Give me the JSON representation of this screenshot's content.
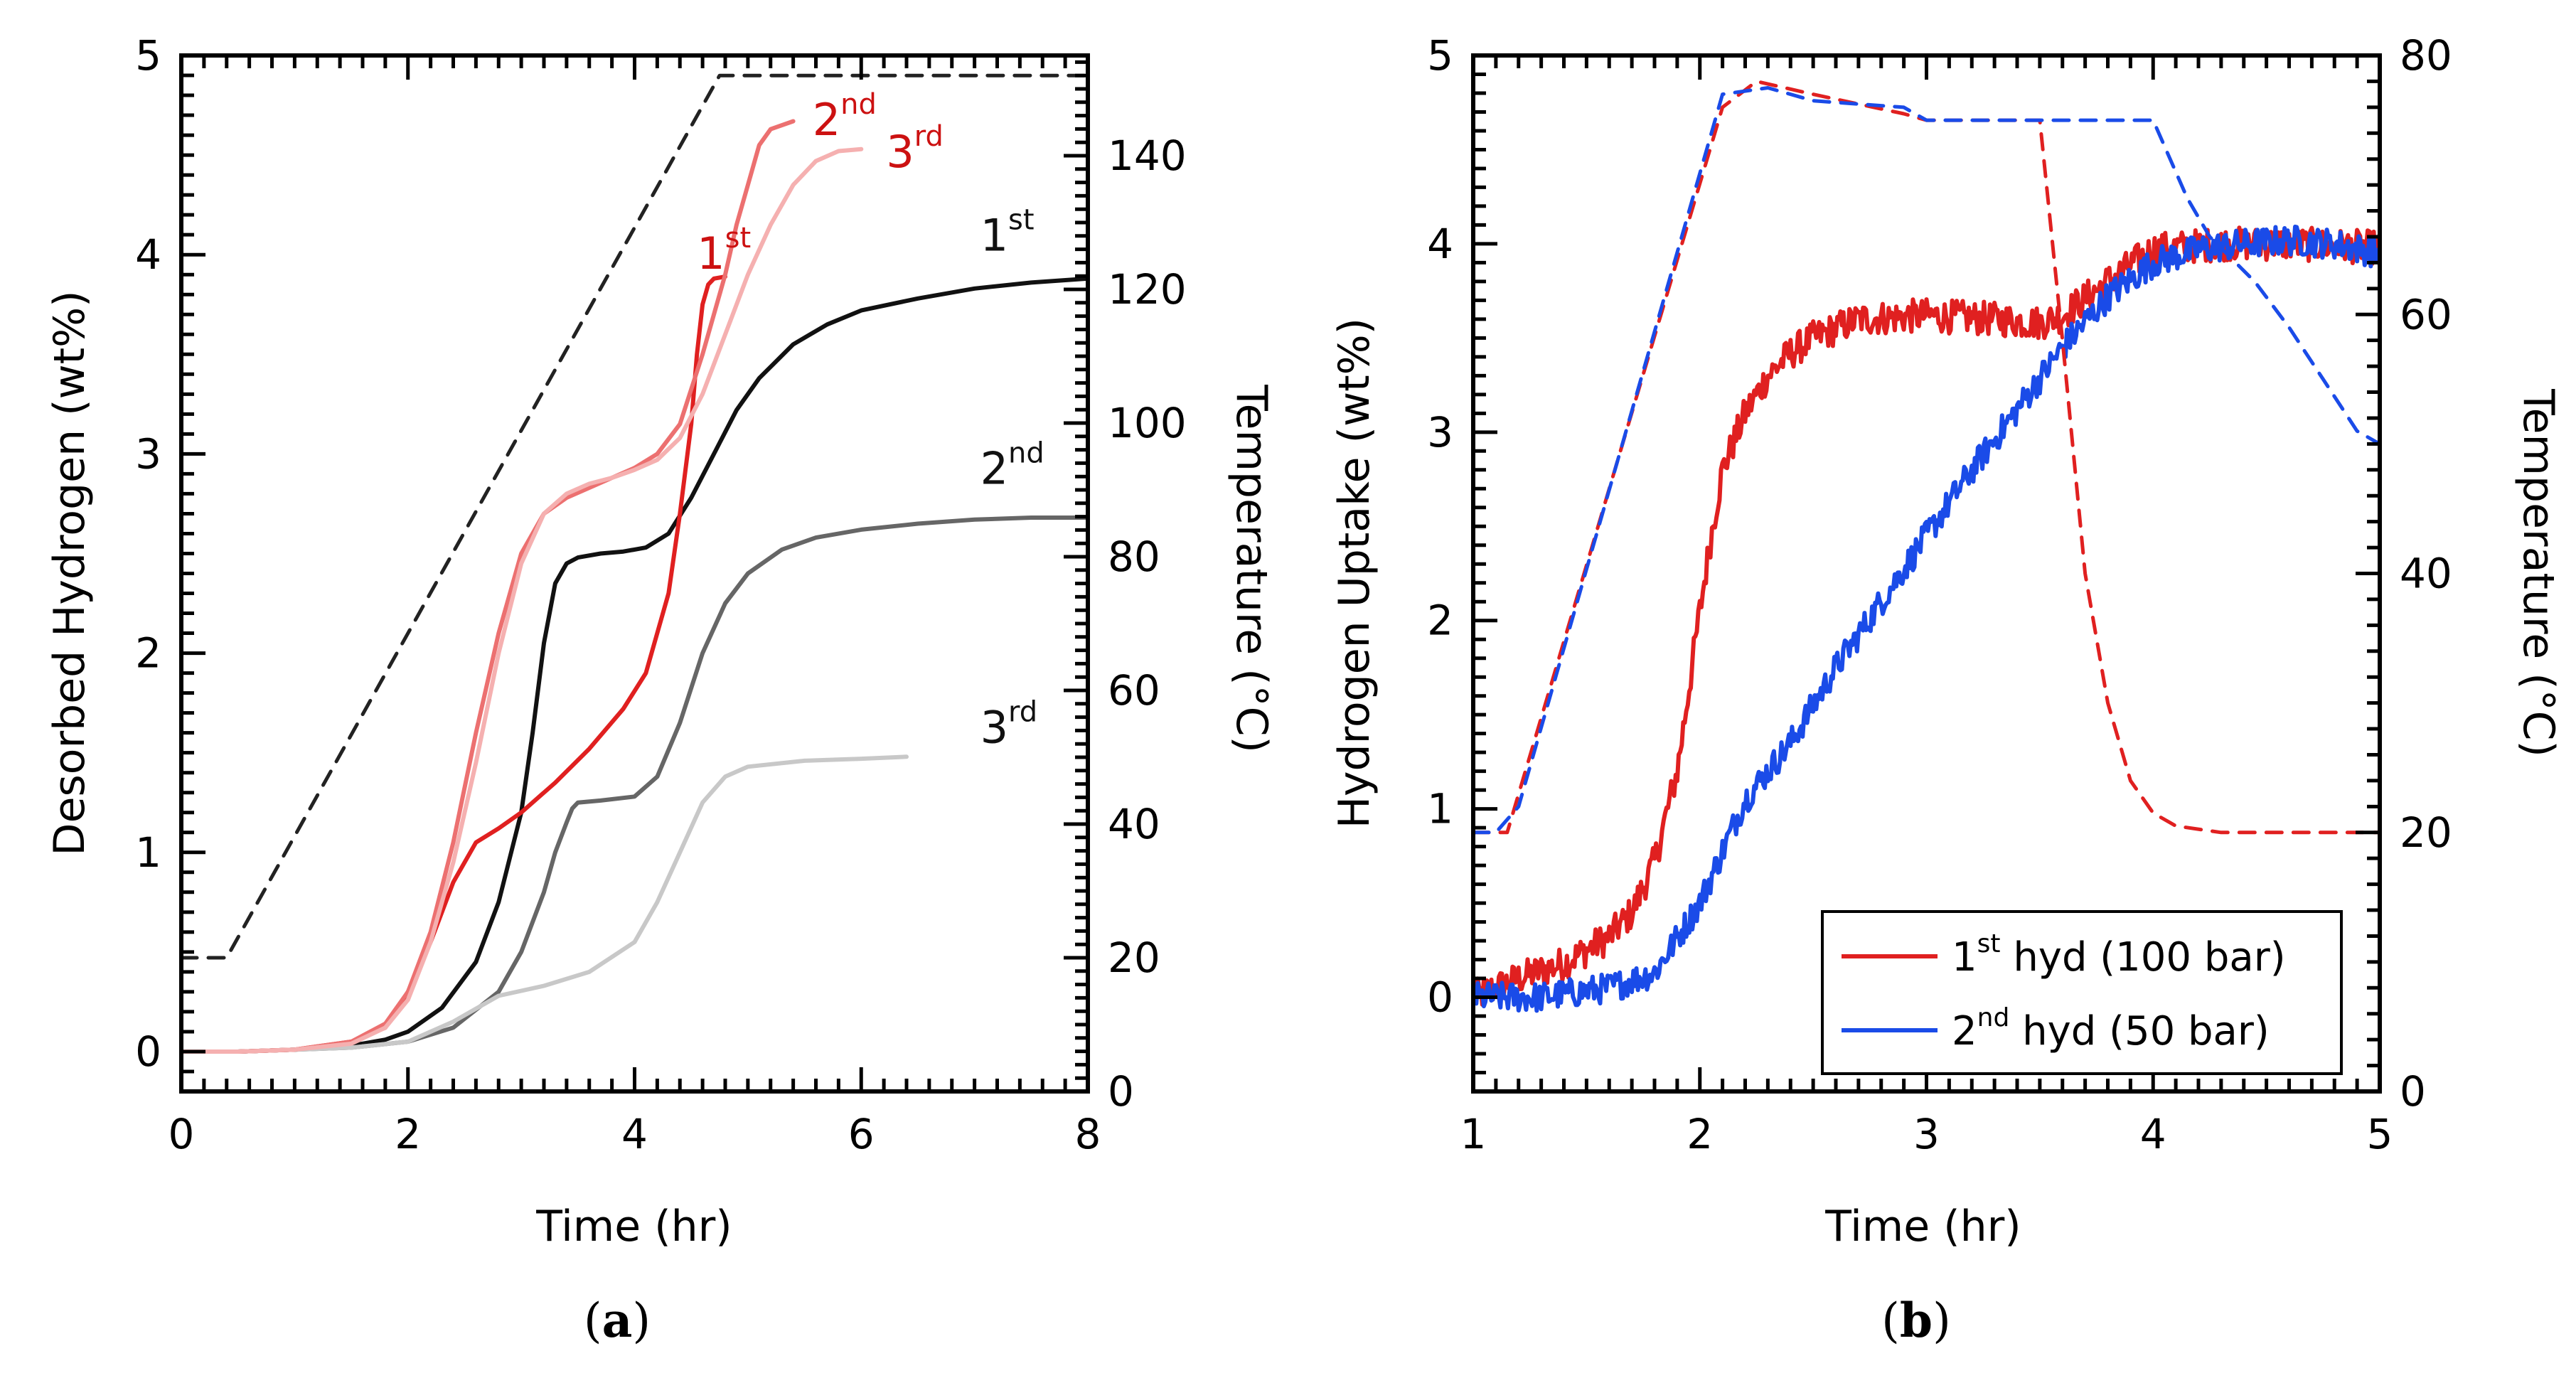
{
  "chart_data": [
    {
      "panel": "a",
      "panel_label": "(a)",
      "panel_letter": "a",
      "type": "line",
      "xlabel": "Time  (hr)",
      "ylabel": "Desorbed Hydrogen   (wt%)",
      "y2label": "Temperature   (°C)",
      "xlim": [
        0,
        8
      ],
      "ylim": [
        -0.2,
        5
      ],
      "y2lim": [
        0,
        155
      ],
      "xticks": [
        "0",
        "2",
        "4",
        "6",
        "8"
      ],
      "yticks": [
        "0",
        "1",
        "2",
        "3",
        "4",
        "5"
      ],
      "y2ticks": [
        "0",
        "20",
        "40",
        "60",
        "80",
        "100",
        "120",
        "140"
      ],
      "series": [
        {
          "name": "1st (black)",
          "color": "#111111",
          "axis": "left",
          "x": [
            0,
            0.5,
            1.0,
            1.5,
            1.8,
            2.0,
            2.3,
            2.6,
            2.8,
            3.0,
            3.1,
            3.2,
            3.3,
            3.4,
            3.5,
            3.7,
            3.9,
            4.1,
            4.3,
            4.5,
            4.7,
            4.9,
            5.1,
            5.4,
            5.7,
            6.0,
            6.5,
            7.0,
            7.5,
            8.0
          ],
          "y": [
            0,
            0,
            0.01,
            0.03,
            0.06,
            0.1,
            0.22,
            0.45,
            0.75,
            1.2,
            1.6,
            2.05,
            2.35,
            2.45,
            2.48,
            2.5,
            2.51,
            2.53,
            2.6,
            2.78,
            3.0,
            3.22,
            3.38,
            3.55,
            3.65,
            3.72,
            3.78,
            3.83,
            3.86,
            3.88
          ]
        },
        {
          "name": "2nd (grey)",
          "color": "#666666",
          "axis": "left",
          "x": [
            0,
            0.5,
            1.0,
            1.5,
            2.0,
            2.4,
            2.8,
            3.0,
            3.2,
            3.3,
            3.4,
            3.45,
            3.5,
            3.7,
            4.0,
            4.2,
            4.4,
            4.6,
            4.8,
            5.0,
            5.3,
            5.6,
            6.0,
            6.5,
            7.0,
            7.5,
            8.0
          ],
          "y": [
            0,
            0,
            0.01,
            0.02,
            0.05,
            0.12,
            0.3,
            0.5,
            0.8,
            1.0,
            1.15,
            1.22,
            1.25,
            1.26,
            1.28,
            1.38,
            1.65,
            2.0,
            2.25,
            2.4,
            2.52,
            2.58,
            2.62,
            2.65,
            2.67,
            2.68,
            2.68
          ]
        },
        {
          "name": "3rd (light grey)",
          "color": "#c8c8c8",
          "axis": "left",
          "x": [
            0,
            0.5,
            1.0,
            1.5,
            2.0,
            2.4,
            2.8,
            3.2,
            3.6,
            4.0,
            4.2,
            4.4,
            4.6,
            4.8,
            5.0,
            5.5,
            6.0,
            6.4
          ],
          "y": [
            0,
            0,
            0.01,
            0.02,
            0.05,
            0.15,
            0.28,
            0.33,
            0.4,
            0.55,
            0.75,
            1.0,
            1.25,
            1.38,
            1.43,
            1.46,
            1.47,
            1.48
          ]
        },
        {
          "name": "1st (red)",
          "color": "#e02020",
          "axis": "left",
          "x": [
            0,
            0.5,
            1.0,
            1.5,
            1.8,
            2.0,
            2.2,
            2.4,
            2.6,
            2.8,
            3.0,
            3.3,
            3.6,
            3.9,
            4.1,
            4.3,
            4.4,
            4.5,
            4.55,
            4.6,
            4.65,
            4.7,
            4.8
          ],
          "y": [
            0,
            0,
            0.01,
            0.05,
            0.12,
            0.3,
            0.55,
            0.85,
            1.05,
            1.12,
            1.2,
            1.35,
            1.52,
            1.72,
            1.9,
            2.3,
            2.7,
            3.15,
            3.5,
            3.75,
            3.85,
            3.88,
            3.89
          ]
        },
        {
          "name": "2nd (salmon)",
          "color": "#ec7070",
          "axis": "left",
          "x": [
            0,
            0.5,
            1.0,
            1.5,
            1.8,
            2.0,
            2.2,
            2.4,
            2.6,
            2.8,
            3.0,
            3.2,
            3.4,
            3.6,
            3.8,
            4.0,
            4.2,
            4.4,
            4.6,
            4.8,
            4.9,
            5.0,
            5.1,
            5.2,
            5.4
          ],
          "y": [
            0,
            0,
            0.01,
            0.05,
            0.14,
            0.3,
            0.6,
            1.05,
            1.6,
            2.1,
            2.5,
            2.7,
            2.78,
            2.83,
            2.88,
            2.93,
            3.0,
            3.15,
            3.5,
            3.9,
            4.15,
            4.35,
            4.55,
            4.63,
            4.67
          ]
        },
        {
          "name": "3rd (pink)",
          "color": "#f5b0b0",
          "axis": "left",
          "x": [
            0,
            0.5,
            1.0,
            1.5,
            1.8,
            2.0,
            2.2,
            2.4,
            2.6,
            2.8,
            3.0,
            3.2,
            3.4,
            3.6,
            3.8,
            4.0,
            4.2,
            4.4,
            4.6,
            4.8,
            5.0,
            5.2,
            5.4,
            5.6,
            5.8,
            6.0
          ],
          "y": [
            0,
            0,
            0.01,
            0.04,
            0.12,
            0.26,
            0.55,
            0.95,
            1.45,
            2.0,
            2.45,
            2.7,
            2.8,
            2.85,
            2.88,
            2.92,
            2.97,
            3.08,
            3.3,
            3.6,
            3.9,
            4.15,
            4.35,
            4.47,
            4.52,
            4.53
          ]
        },
        {
          "name": "Temperature",
          "color": "#222222",
          "axis": "right",
          "dashed": true,
          "x": [
            0,
            0.35,
            0.4,
            4.75,
            8.0
          ],
          "y": [
            20,
            20,
            20,
            152,
            152
          ]
        }
      ],
      "annotations": [
        {
          "base": "1",
          "sup": "st",
          "color": "#cc1111",
          "x": 4.55,
          "y": 3.93
        },
        {
          "base": "2",
          "sup": "nd",
          "color": "#cc1111",
          "x": 5.57,
          "y": 4.6
        },
        {
          "base": "3",
          "sup": "rd",
          "color": "#cc1111",
          "x": 6.22,
          "y": 4.44
        },
        {
          "base": "1",
          "sup": "st",
          "color": "#111111",
          "x": 7.05,
          "y": 4.02
        },
        {
          "base": "2",
          "sup": "nd",
          "color": "#111111",
          "x": 7.05,
          "y": 2.85
        },
        {
          "base": "3",
          "sup": "rd",
          "color": "#111111",
          "x": 7.05,
          "y": 1.55
        }
      ]
    },
    {
      "panel": "b",
      "panel_label": "(b)",
      "panel_letter": "b",
      "type": "line",
      "xlabel": "Time    (hr)",
      "ylabel": "Hydrogen Uptake   (wt%)",
      "y2label": "Temperature   (°C)",
      "xlim": [
        1,
        5
      ],
      "ylim": [
        -0.5,
        5
      ],
      "y2lim": [
        0,
        80
      ],
      "xticks": [
        "1",
        "2",
        "3",
        "4",
        "5"
      ],
      "yticks": [
        "0",
        "1",
        "2",
        "3",
        "4",
        "5"
      ],
      "y2ticks": [
        "0",
        "20",
        "40",
        "60",
        "80"
      ],
      "legend": {
        "position": "bottom-right",
        "entries": [
          {
            "base": "1",
            "sup": "st",
            "rest": " hyd (100 bar)",
            "color": "#e02020"
          },
          {
            "base": "2",
            "sup": "nd",
            "rest": " hyd (50 bar)",
            "color": "#1a4be8"
          }
        ]
      },
      "series": [
        {
          "name": "1st hyd (100 bar)",
          "color": "#e02020",
          "axis": "left",
          "x": [
            1.0,
            1.2,
            1.4,
            1.6,
            1.7,
            1.8,
            1.9,
            2.0,
            2.05,
            2.1,
            2.2,
            2.3,
            2.4,
            2.5,
            2.7,
            3.0,
            3.3,
            3.5,
            3.6,
            3.8,
            4.0,
            4.3,
            4.6,
            5.0
          ],
          "y": [
            0.0,
            0.1,
            0.18,
            0.32,
            0.45,
            0.72,
            1.2,
            2.05,
            2.45,
            2.8,
            3.1,
            3.3,
            3.42,
            3.5,
            3.6,
            3.62,
            3.6,
            3.58,
            3.62,
            3.8,
            3.97,
            4.0,
            4.0,
            3.98
          ],
          "noise": 0.09
        },
        {
          "name": "2nd hyd (50 bar)",
          "color": "#1a4be8",
          "axis": "left",
          "x": [
            1.0,
            1.3,
            1.6,
            1.8,
            2.0,
            2.2,
            2.4,
            2.6,
            2.8,
            3.0,
            3.2,
            3.4,
            3.6,
            3.8,
            4.0,
            4.2,
            4.4,
            4.6,
            4.8,
            5.0
          ],
          "y": [
            0.0,
            0.0,
            0.05,
            0.13,
            0.5,
            1.05,
            1.35,
            1.75,
            2.1,
            2.45,
            2.8,
            3.12,
            3.45,
            3.72,
            3.9,
            3.97,
            4.0,
            4.02,
            4.0,
            3.95
          ],
          "noise": 0.08
        },
        {
          "name": "Temperature (1st hyd)",
          "color": "#e02020",
          "axis": "right",
          "dashed": true,
          "x": [
            1.0,
            1.15,
            2.1,
            2.25,
            2.5,
            2.9,
            3.0,
            3.5,
            3.6,
            3.7,
            3.8,
            3.9,
            4.0,
            4.1,
            4.3,
            5.0
          ],
          "y": [
            20,
            20,
            76,
            78,
            77,
            75.5,
            75,
            75,
            58,
            40,
            30,
            24,
            21.5,
            20.5,
            20,
            20
          ]
        },
        {
          "name": "Temperature (2nd hyd)",
          "color": "#1a4be8",
          "axis": "right",
          "dashed": true,
          "x": [
            1.0,
            1.1,
            1.2,
            2.1,
            2.3,
            2.5,
            2.9,
            3.0,
            3.7,
            4.0,
            4.05,
            4.15,
            4.25,
            4.45,
            4.6,
            4.75,
            4.9,
            5.0
          ],
          "y": [
            20,
            20,
            22,
            77,
            77.5,
            76.5,
            76,
            75,
            75,
            75,
            73,
            69,
            66,
            62.5,
            59,
            55,
            51,
            50
          ]
        }
      ]
    }
  ]
}
